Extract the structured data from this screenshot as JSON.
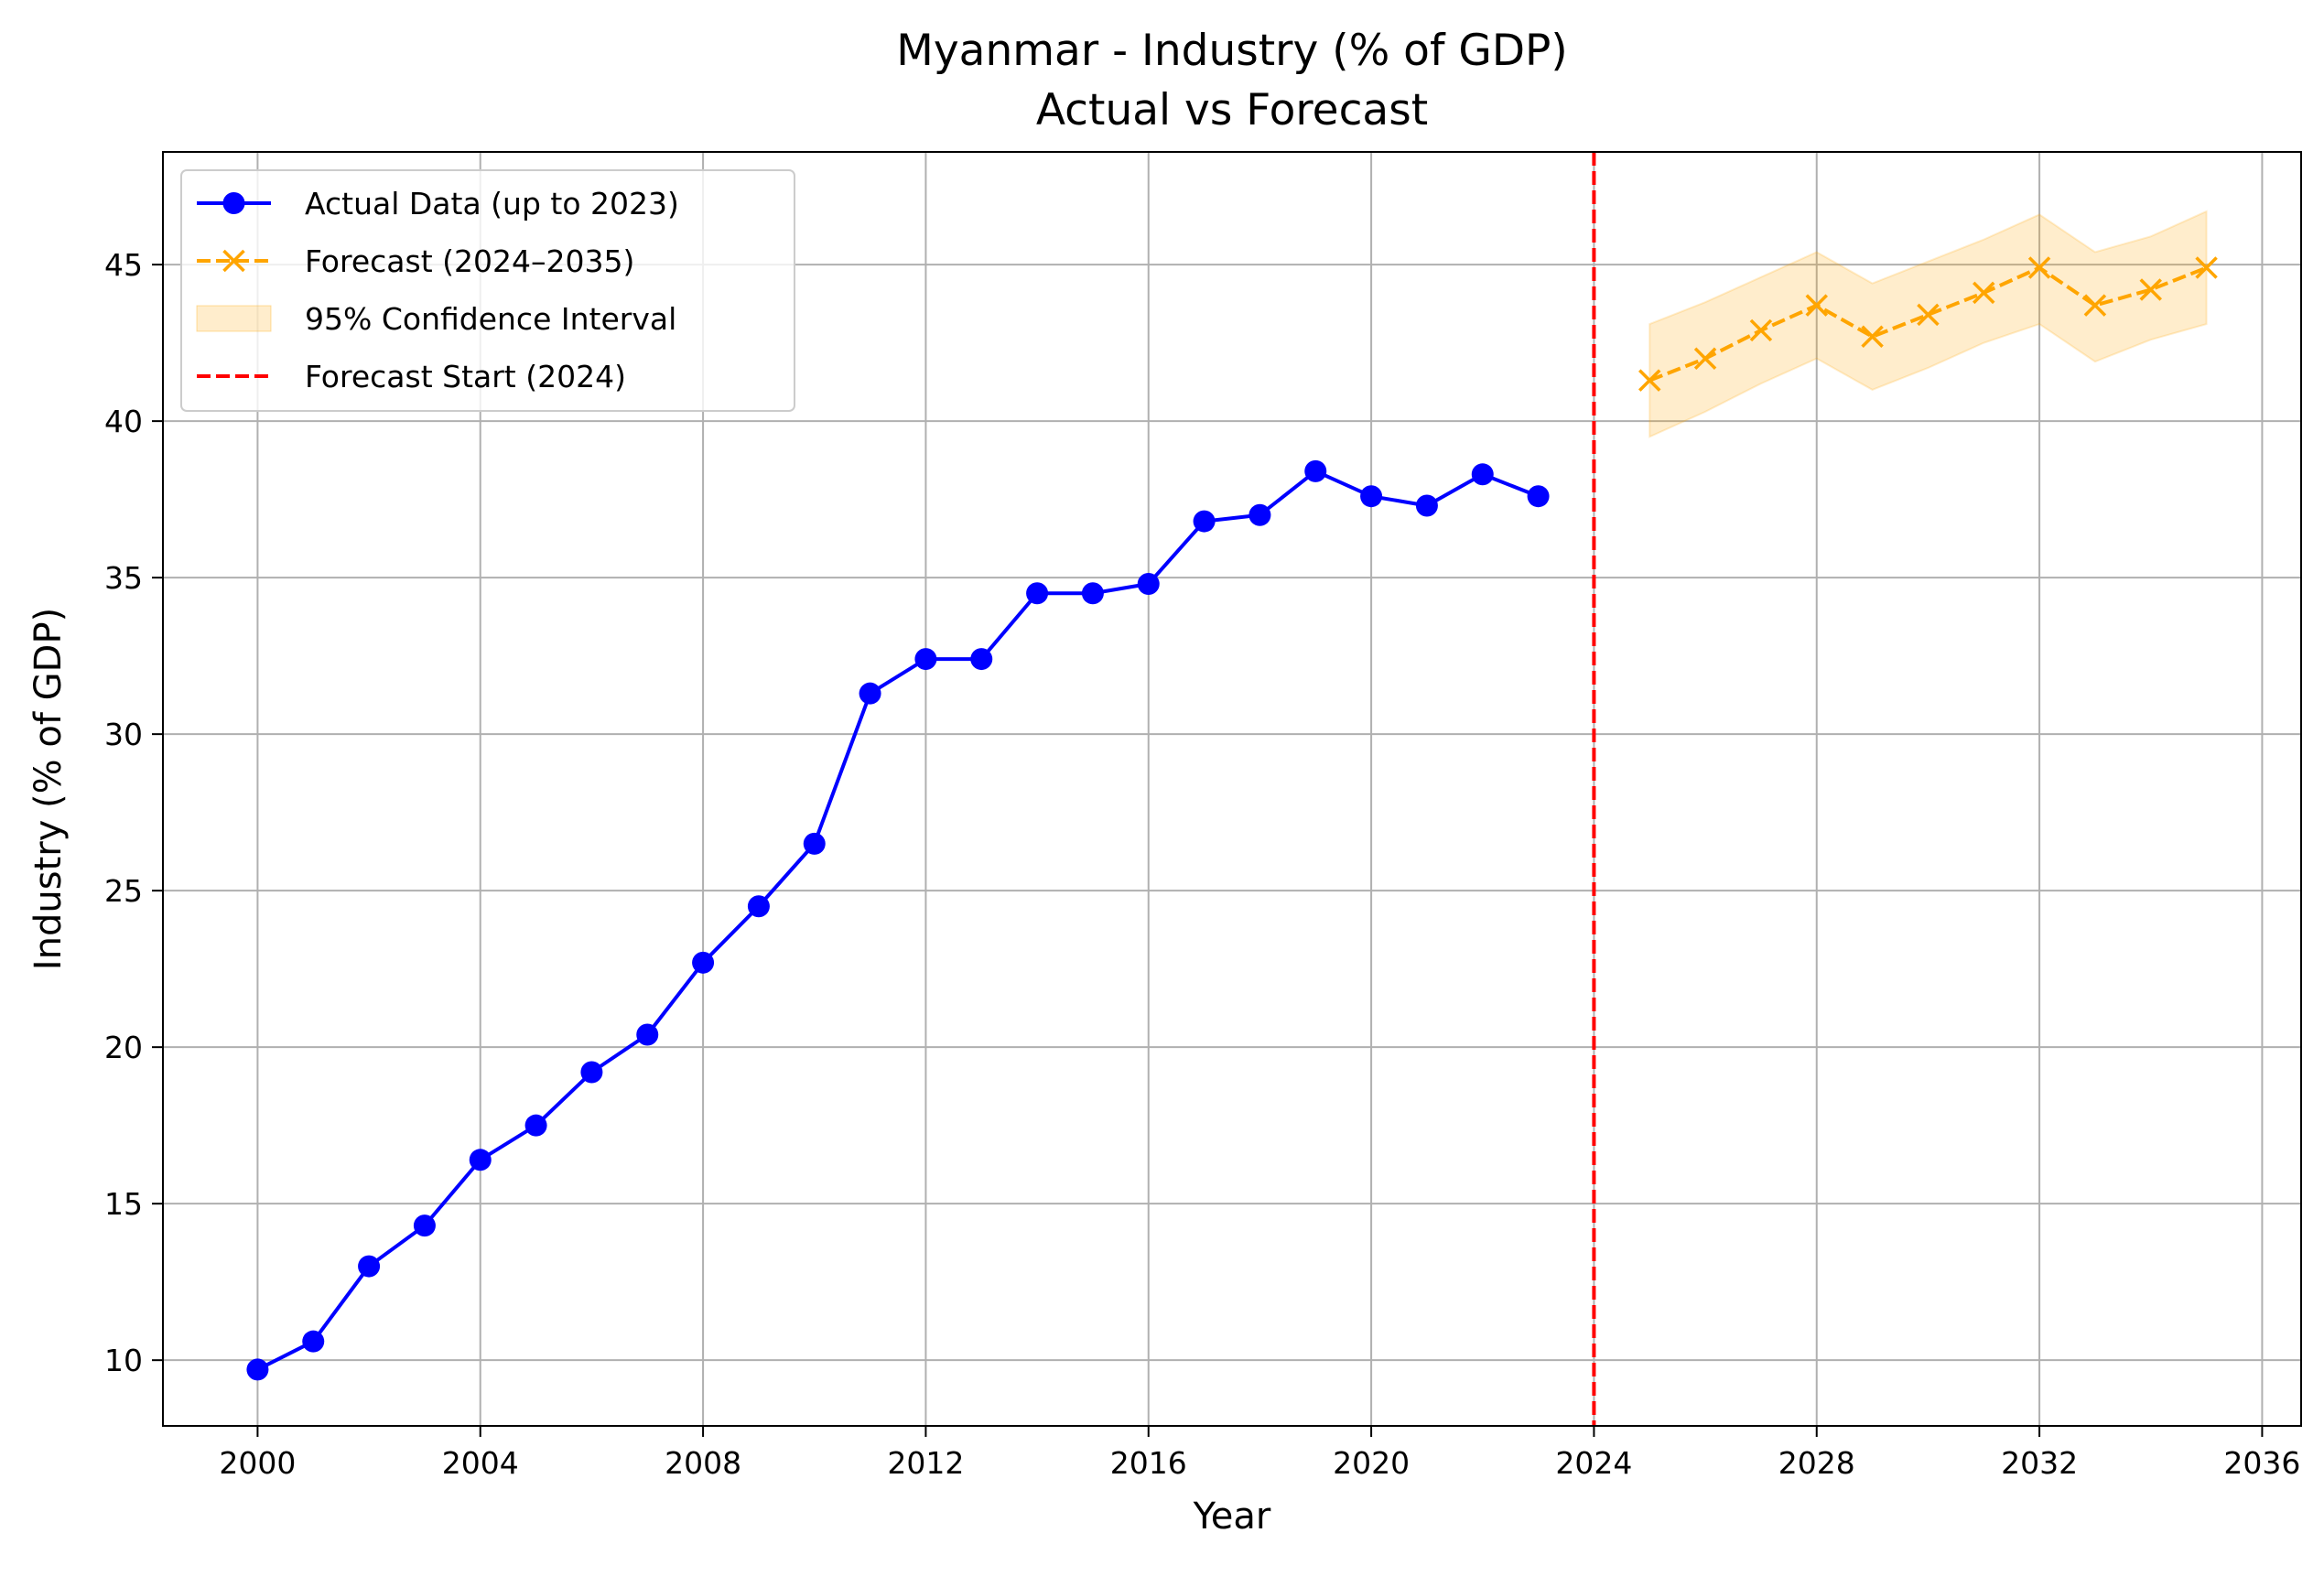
{
  "chart_data": {
    "type": "line",
    "title": "Myanmar - Industry (% of GDP)",
    "subtitle": "Actual vs Forecast",
    "xlabel": "Year",
    "ylabel": "Industry (% of GDP)",
    "xlim": [
      1998.3,
      2036.7
    ],
    "ylim": [
      7.9,
      48.6
    ],
    "xticks": [
      2000,
      2004,
      2008,
      2012,
      2016,
      2020,
      2024,
      2028,
      2032,
      2036
    ],
    "yticks": [
      10,
      15,
      20,
      25,
      30,
      35,
      40,
      45
    ],
    "grid": true,
    "legend_position": "upper left",
    "series": [
      {
        "name": "Actual Data (up to 2023)",
        "color": "#0000ff",
        "style": "solid-circle-markers",
        "x": [
          2000,
          2001,
          2002,
          2003,
          2004,
          2005,
          2006,
          2007,
          2008,
          2009,
          2010,
          2011,
          2012,
          2013,
          2014,
          2015,
          2016,
          2017,
          2018,
          2019,
          2020,
          2021,
          2022,
          2023
        ],
        "y": [
          9.7,
          10.6,
          13.0,
          14.3,
          16.4,
          17.5,
          19.2,
          20.4,
          22.7,
          24.5,
          26.5,
          31.3,
          32.4,
          32.4,
          34.5,
          34.5,
          34.8,
          36.8,
          37.0,
          38.4,
          37.6,
          37.3,
          38.3,
          37.6
        ]
      },
      {
        "name": "Forecast (2024–2035)",
        "color": "#ffa500",
        "style": "dashed-x-markers",
        "x": [
          2025,
          2026,
          2027,
          2028,
          2029,
          2030,
          2031,
          2032,
          2033,
          2034,
          2035
        ],
        "y": [
          41.3,
          42.0,
          42.9,
          43.7,
          42.7,
          43.4,
          44.1,
          44.9,
          43.7,
          44.2,
          44.9
        ]
      }
    ],
    "confidence_interval": {
      "name": "95% Confidence Interval",
      "color": "#ffa500",
      "opacity": 0.2,
      "x": [
        2025,
        2026,
        2027,
        2028,
        2029,
        2030,
        2031,
        2032,
        2033,
        2034,
        2035
      ],
      "lower": [
        39.5,
        40.3,
        41.2,
        42.0,
        41.0,
        41.7,
        42.5,
        43.1,
        41.9,
        42.6,
        43.1
      ],
      "upper": [
        43.1,
        43.8,
        44.6,
        45.4,
        44.4,
        45.1,
        45.8,
        46.6,
        45.4,
        45.9,
        46.7
      ]
    },
    "vertical_line": {
      "name": "Forecast Start (2024)",
      "x": 2024,
      "color": "#ff0000",
      "style": "dashed"
    }
  }
}
